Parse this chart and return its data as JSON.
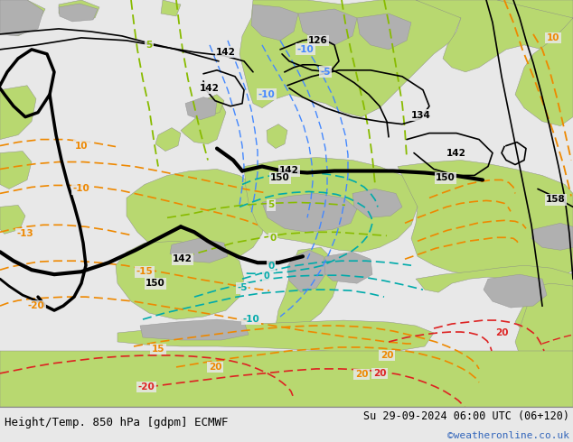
{
  "title_left": "Height/Temp. 850 hPa [gdpm] ECMWF",
  "title_right": "Su 29-09-2024 06:00 UTC (06+120)",
  "copyright": "©weatheronline.co.uk",
  "bg_color": "#e8e8e8",
  "land_green": "#b8d870",
  "land_green2": "#c8e890",
  "gray_terrain": "#b0b0b0",
  "fig_width": 6.34,
  "fig_height": 4.9,
  "dpi": 100,
  "title_fontsize": 9,
  "copyright_color": "#3366bb",
  "copyright_fontsize": 8,
  "black_lw": 2.0,
  "thin_black_lw": 1.2,
  "orange_color": "#ee8800",
  "lime_color": "#88bb00",
  "cyan_color": "#00bbcc",
  "blue_color": "#4488ff",
  "red_color": "#dd2222",
  "teal_color": "#00aaaa"
}
